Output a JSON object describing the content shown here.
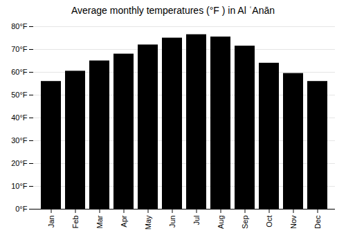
{
  "chart_data": {
    "type": "bar",
    "title": "Average monthly temperatures (°F ) in Al ʿAnān",
    "categories": [
      "Jan",
      "Feb",
      "Mar",
      "Apr",
      "May",
      "Jun",
      "Jul",
      "Aug",
      "Sep",
      "Oct",
      "Nov",
      "Dec"
    ],
    "values": [
      56,
      60.5,
      65,
      68,
      72,
      75,
      76.5,
      75.5,
      71.5,
      64,
      59.5,
      56
    ],
    "ylim": [
      0,
      80
    ],
    "yticks": [
      {
        "value": 0,
        "label": "0°F"
      },
      {
        "value": 10,
        "label": "10°F"
      },
      {
        "value": 20,
        "label": "20°F"
      },
      {
        "value": 30,
        "label": "30°F"
      },
      {
        "value": 40,
        "label": "40°F"
      },
      {
        "value": 50,
        "label": "50°F"
      },
      {
        "value": 60,
        "label": "60°F"
      },
      {
        "value": 70,
        "label": "70°F"
      },
      {
        "value": 80,
        "label": "80°F"
      }
    ],
    "grid": true
  }
}
